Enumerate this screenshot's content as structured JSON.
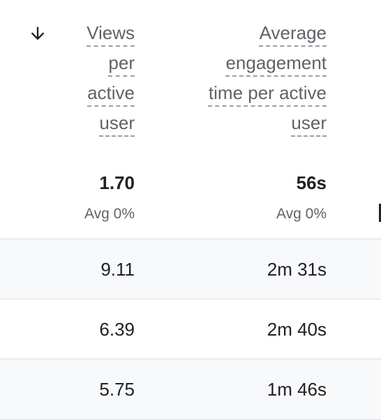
{
  "header": {
    "columns": [
      "Views per active user",
      "Average engagement time per active user"
    ]
  },
  "totals": [
    {
      "value": "1.70",
      "note": "Avg 0%"
    },
    {
      "value": "56s",
      "note": "Avg 0%"
    }
  ],
  "table": {
    "rows": [
      [
        "9.11",
        "2m 31s"
      ],
      [
        "6.39",
        "2m 40s"
      ],
      [
        "5.75",
        "1m 46s"
      ]
    ]
  }
}
